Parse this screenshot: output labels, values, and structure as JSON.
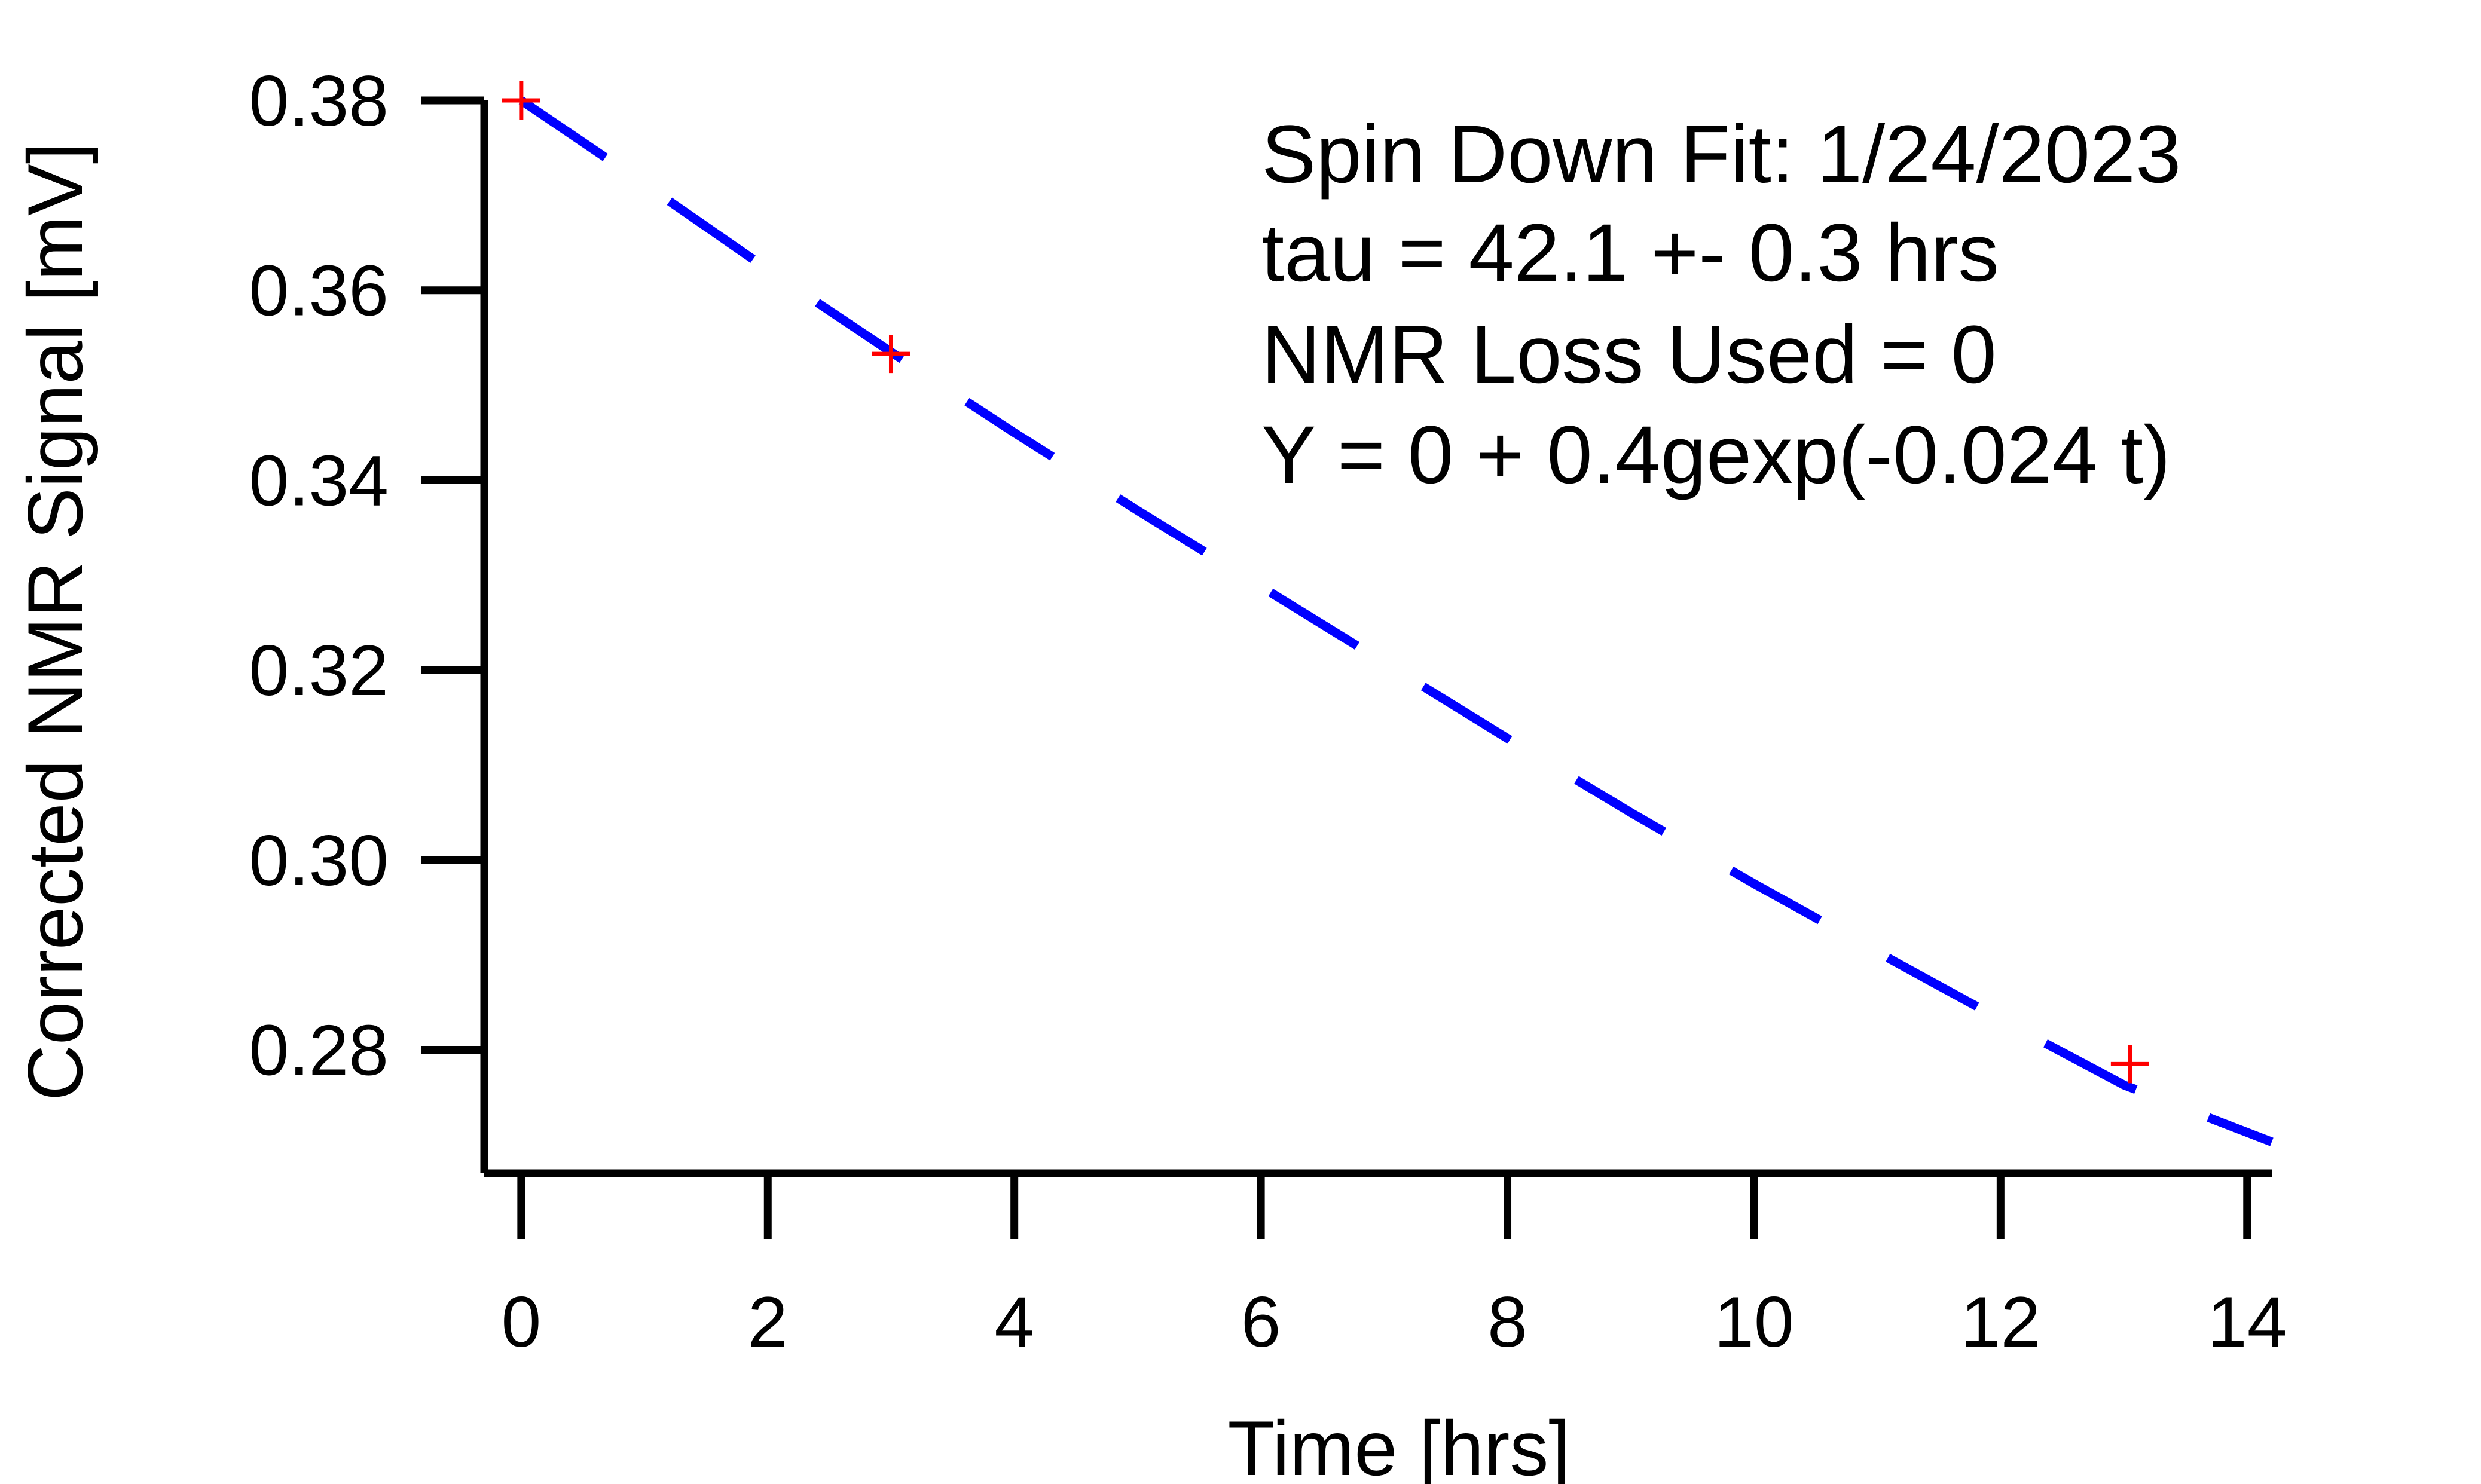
{
  "chart_data": {
    "type": "scatter",
    "xlabel": "Time [hrs]",
    "ylabel": "Corrected NMR Signal [mV]",
    "xlim": [
      -0.3,
      14.2
    ],
    "ylim": [
      0.267,
      0.38
    ],
    "x_ticks": [
      0,
      2,
      4,
      6,
      8,
      10,
      12,
      14
    ],
    "x_tick_labels": [
      "0",
      "2",
      "4",
      "6",
      "8",
      "10",
      "12",
      "14"
    ],
    "y_ticks": [
      0.28,
      0.3,
      0.32,
      0.34,
      0.36,
      0.38
    ],
    "y_tick_labels": [
      "0.28",
      "0.30",
      "0.32",
      "0.34",
      "0.36",
      "0.38"
    ],
    "grid": false,
    "series": [
      {
        "kind": "scatter",
        "marker": "plus",
        "color": "#ff0000",
        "points": [
          {
            "x": 0,
            "y": 0.38
          },
          {
            "x": 3.0,
            "y": 0.3533
          },
          {
            "x": 13.05,
            "y": 0.2785
          }
        ]
      },
      {
        "kind": "line",
        "style": "dashed",
        "color": "#0000ff",
        "x": [
          0,
          1,
          2,
          3,
          4,
          5,
          6,
          7,
          8,
          9,
          10,
          11,
          12,
          13,
          14.2
        ],
        "y": [
          0.38,
          0.3712,
          0.3622,
          0.3535,
          0.345,
          0.3368,
          0.3288,
          0.3208,
          0.3128,
          0.305,
          0.2975,
          0.2903,
          0.2832,
          0.2763,
          0.2703
        ]
      }
    ],
    "annotations": [
      "Spin Down Fit: 1/24/2023",
      "tau = 42.1  +- 0.3 hrs",
      "NMR Loss Used = 0",
      "Y = 0 + 0.4gexp(-0.024 t)"
    ]
  }
}
